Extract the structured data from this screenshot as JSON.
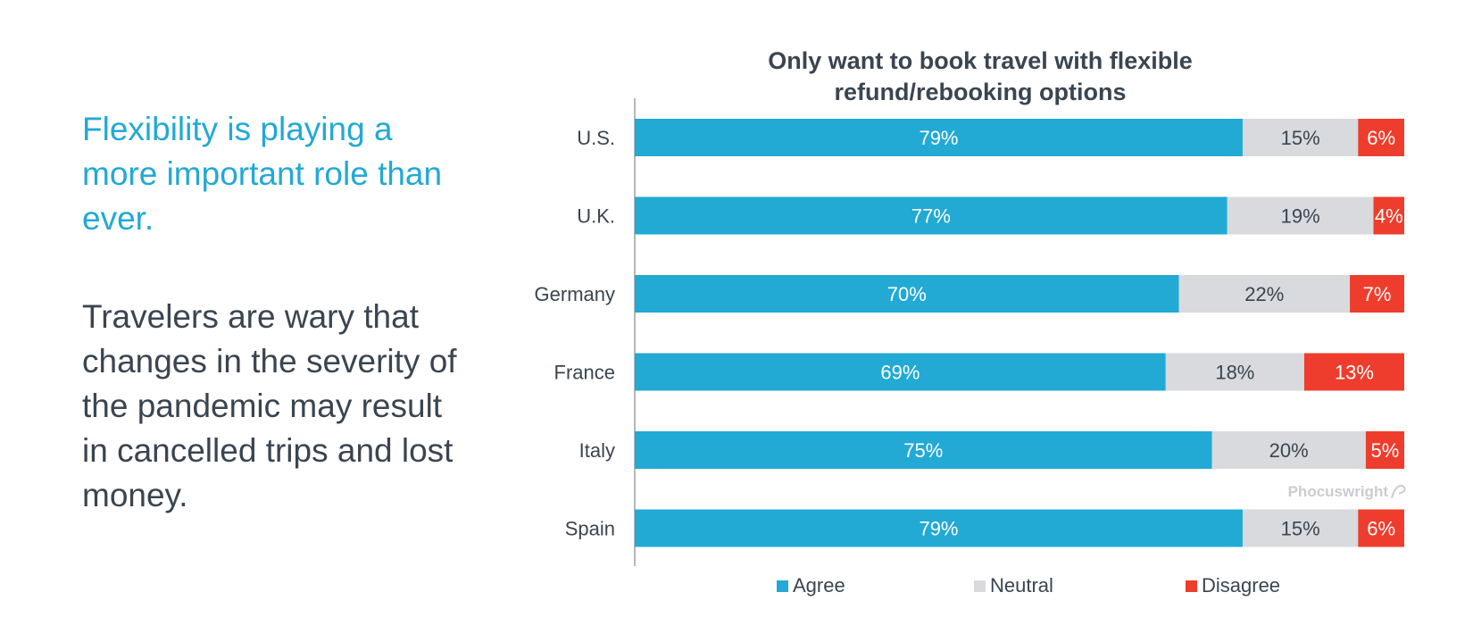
{
  "left_panel": {
    "headline": "Flexibility is playing a more important role than ever.",
    "body": "Travelers are wary that changes in the severity of the pandemic may result in cancelled trips and lost money."
  },
  "colors": {
    "Agree": "#22a9d4",
    "Neutral": "#d8dadd",
    "Disagree": "#ee3d2c",
    "headline": "#22a9d4",
    "text": "#3a4550"
  },
  "watermark": "Phocuswright",
  "chart_data": {
    "type": "bar",
    "orientation": "horizontal",
    "stacked": true,
    "title": "Only want to book travel with flexible refund/rebooking options",
    "title_lines": [
      "Only want to book travel with flexible",
      "refund/rebooking options"
    ],
    "categories": [
      "U.S.",
      "U.K.",
      "Germany",
      "France",
      "Italy",
      "Spain"
    ],
    "series": [
      {
        "name": "Agree",
        "values": [
          79,
          77,
          70,
          69,
          75,
          79
        ]
      },
      {
        "name": "Neutral",
        "values": [
          15,
          19,
          22,
          18,
          20,
          15
        ]
      },
      {
        "name": "Disagree",
        "values": [
          6,
          4,
          7,
          13,
          5,
          6
        ]
      }
    ],
    "value_suffix": "%",
    "xlim": [
      0,
      100
    ],
    "grid": false,
    "legend": "bottom"
  }
}
